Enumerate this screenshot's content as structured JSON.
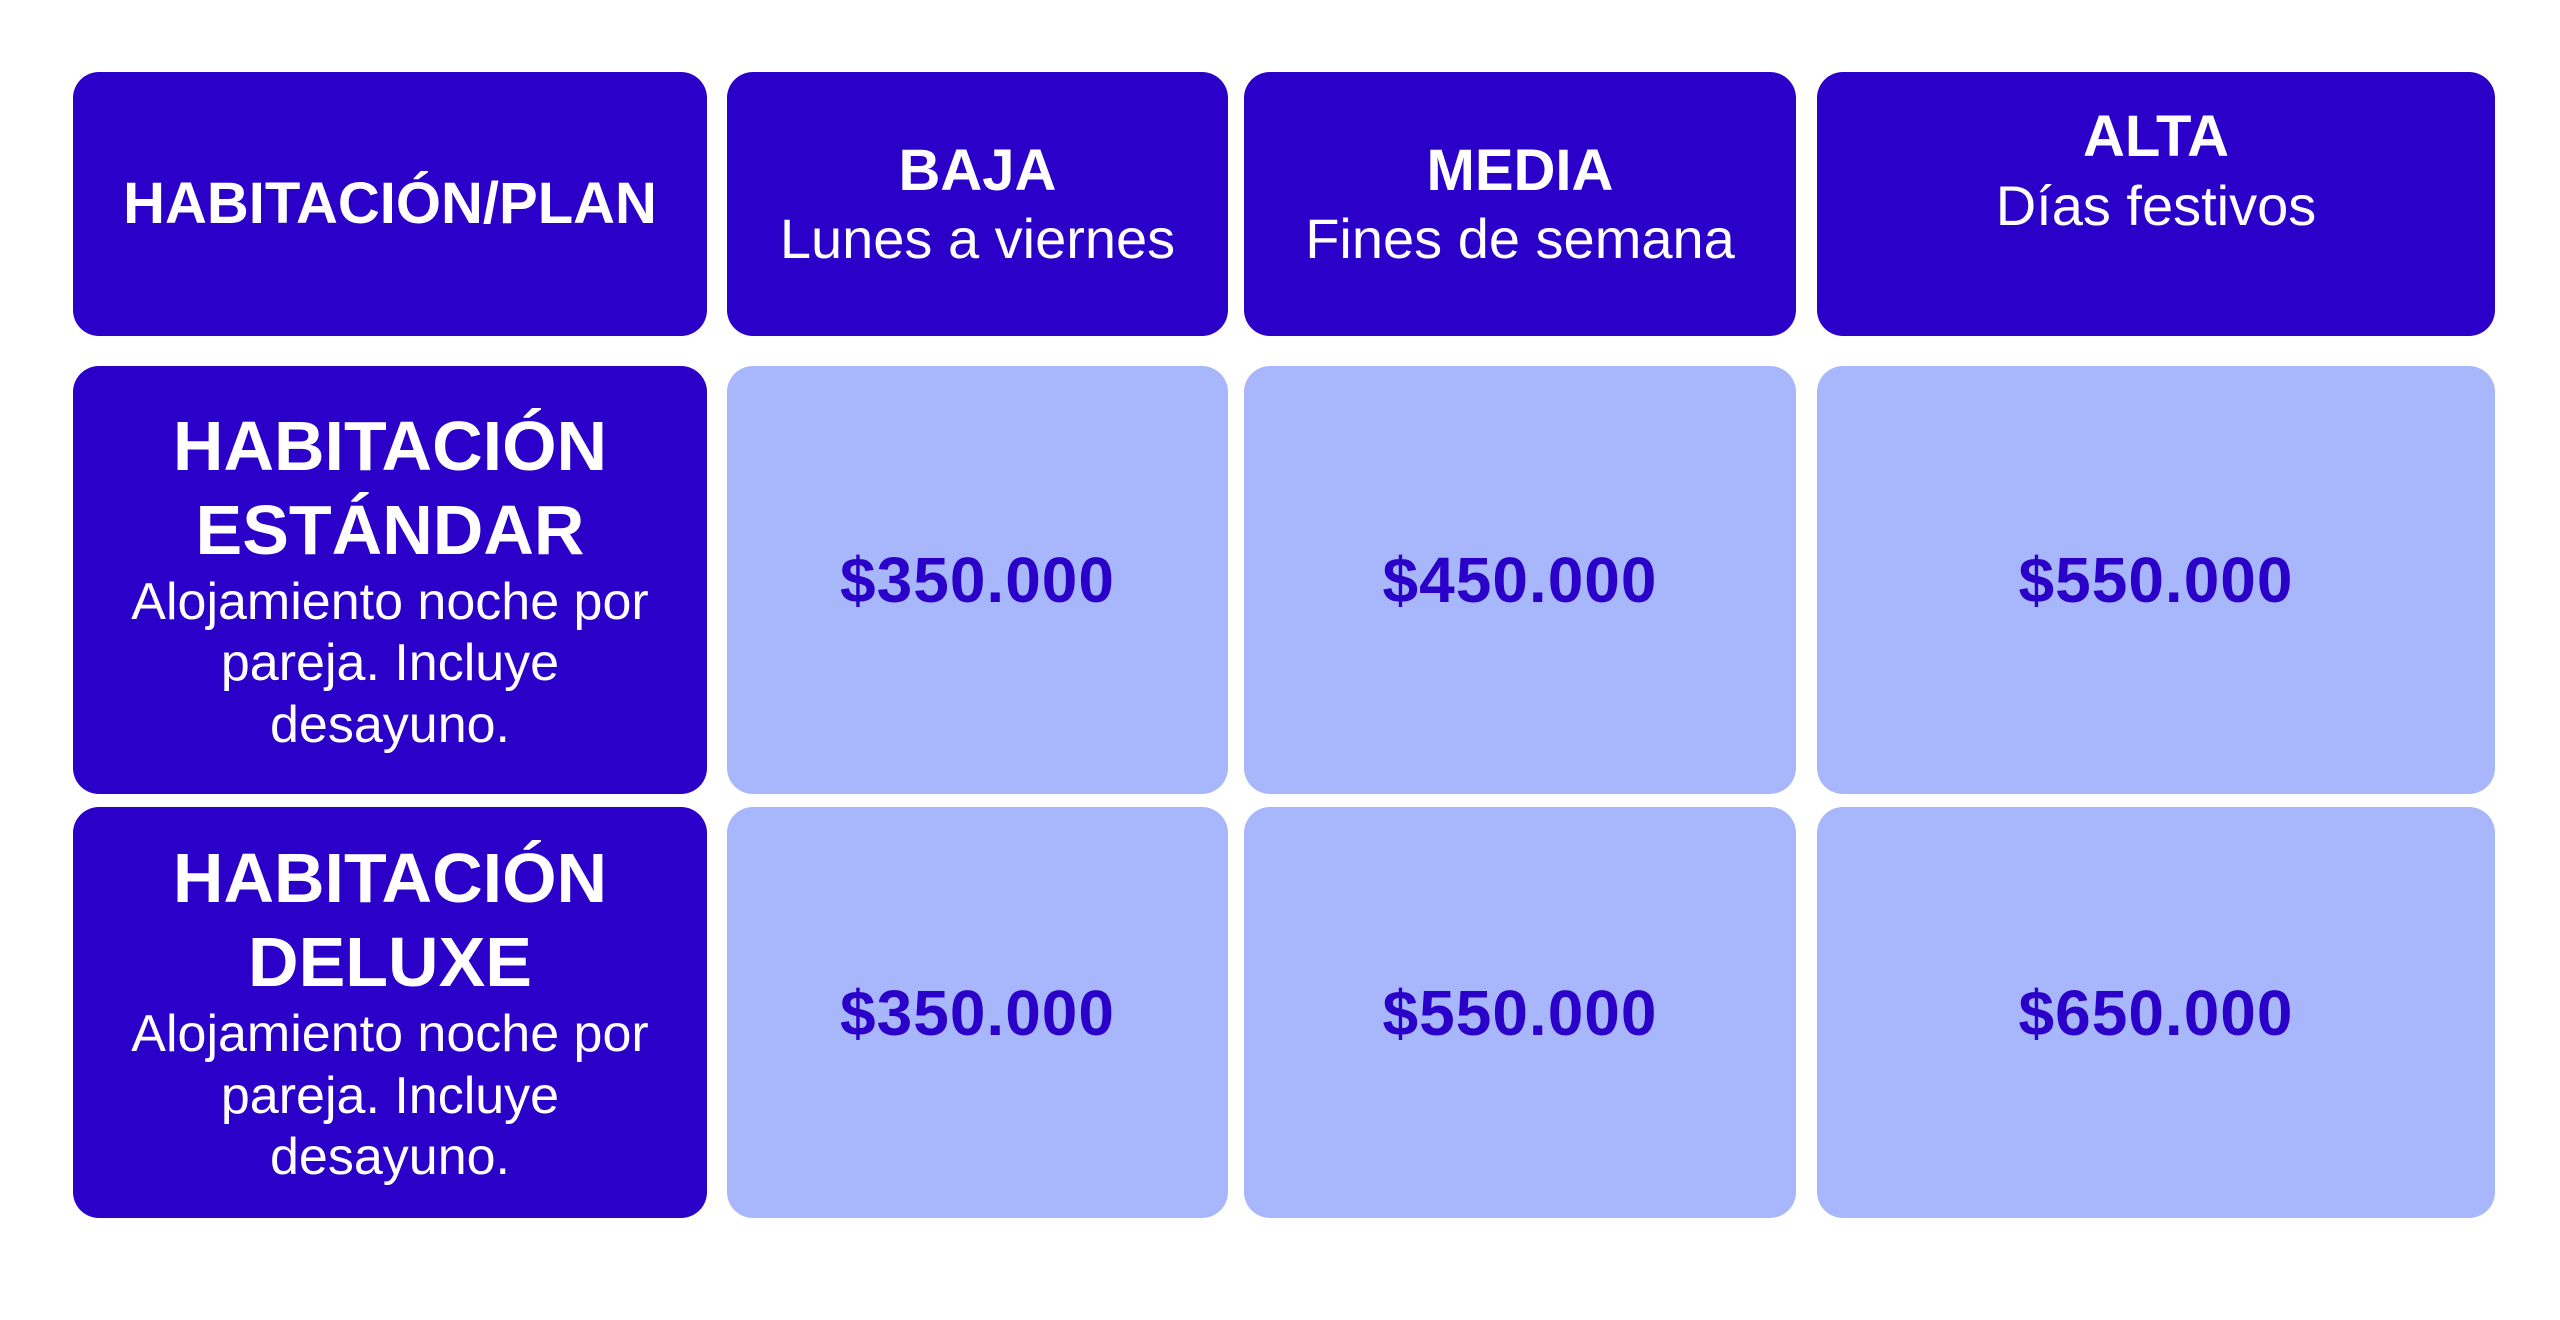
{
  "colors": {
    "header_bg": "#2B00C8",
    "price_bg": "#A8B6FC",
    "price_text": "#2B00C8",
    "header_text": "#FFFFFF"
  },
  "header": {
    "corner": "HABITACIÓN/PLAN",
    "columns": [
      {
        "title": "BAJA",
        "subtitle": "Lunes a viernes"
      },
      {
        "title": "MEDIA",
        "subtitle": "Fines de semana"
      },
      {
        "title": "ALTA",
        "subtitle": "Días festivos"
      }
    ]
  },
  "rows": [
    {
      "title_line1": "HABITACIÓN",
      "title_line2": "ESTÁNDAR",
      "description": "Alojamiento noche por pareja. Incluye desayuno.",
      "prices": [
        "$350.000",
        "$450.000",
        "$550.000"
      ]
    },
    {
      "title_line1": "HABITACIÓN",
      "title_line2": "DELUXE",
      "description": "Alojamiento noche por pareja. Incluye desayuno.",
      "prices": [
        "$350.000",
        "$550.000",
        "$650.000"
      ]
    }
  ]
}
